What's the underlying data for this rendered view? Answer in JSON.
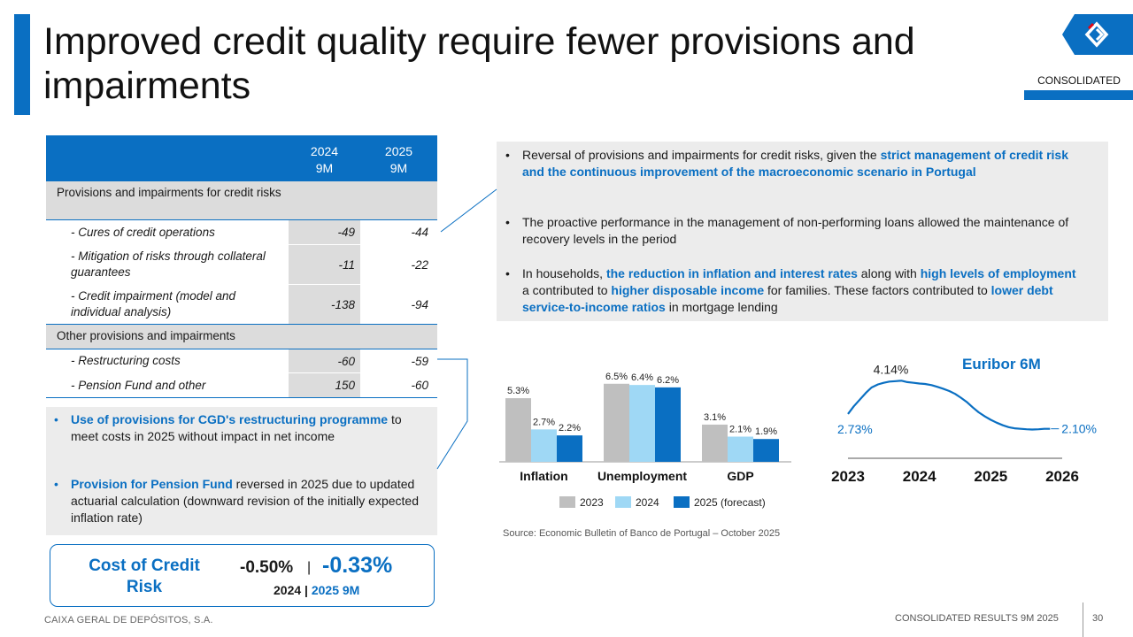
{
  "title": "Improved credit quality require fewer provisions and impairments",
  "badge": "CONSOLIDATED",
  "table": {
    "col1": [
      "2024",
      "9M"
    ],
    "col2": [
      "2025",
      "9M"
    ],
    "sections": [
      {
        "label": "Provisions and impairments for credit risks",
        "rows": [
          {
            "label": "- Cures of credit operations",
            "v2024": "-49",
            "v2025": "-44"
          },
          {
            "label": "- Mitigation of risks through collateral guarantees",
            "v2024": "-11",
            "v2025": "-22"
          },
          {
            "label": "- Credit impairment (model and individual analysis)",
            "v2024": "-138",
            "v2025": "-94"
          }
        ]
      },
      {
        "label": "Other provisions and impairments",
        "rows": [
          {
            "label": "- Restructuring costs",
            "v2024": "-60",
            "v2025": "-59"
          },
          {
            "label": "- Pension Fund and other",
            "v2024": "150",
            "v2025": "-60"
          }
        ]
      }
    ]
  },
  "left_bullets": [
    {
      "strong": "Use of provisions for CGD's restructuring programme",
      "rest": " to meet costs in 2025 without impact in net income"
    },
    {
      "strong": "Provision for Pension Fund",
      "rest": " reversed in 2025 due to updated actuarial calculation (downward revision of the initially expected inflation rate)"
    }
  ],
  "right_bullets": {
    "b1": {
      "pre": "Reversal of provisions and impairments for credit risks, given the ",
      "strong": "strict management of credit risk and the continuous improvement of the macroeconomic scenario in Portugal"
    },
    "b2": {
      "text": "The proactive performance in the management of non-performing loans allowed the maintenance of recovery levels in the period"
    },
    "b3": {
      "p1": "In households, ",
      "s1": "the reduction in inflation and interest rates",
      "p2": " along with ",
      "s2": "high levels of employment",
      "p3": " a contributed to ",
      "s3": "higher disposable income",
      "p4": " for families. These factors contributed to ",
      "s4": "lower debt service-to-income ratios",
      "p5": " in mortgage lending"
    }
  },
  "chart_data": [
    {
      "type": "bar",
      "categories": [
        "Inflation",
        "Unemployment",
        "GDP"
      ],
      "series": [
        {
          "name": "2023",
          "color": "#bfbfbf",
          "values": [
            5.3,
            6.5,
            3.1
          ],
          "labels": [
            "5.3%",
            "6.5%",
            "3.1%"
          ]
        },
        {
          "name": "2024",
          "color": "#9fd8f5",
          "values": [
            2.7,
            6.4,
            2.1
          ],
          "labels": [
            "2.7%",
            "6.4%",
            "2.1%"
          ]
        },
        {
          "name": "2025 (forecast)",
          "color": "#0a6fc2",
          "values": [
            2.2,
            6.2,
            1.9
          ],
          "labels": [
            "2.2%",
            "6.2%",
            "1.9%"
          ]
        }
      ],
      "ylim": [
        0,
        7
      ]
    },
    {
      "type": "line",
      "title": "Euribor 6M",
      "x_ticks": [
        "2023",
        "2024",
        "2025",
        "2026"
      ],
      "xlim": [
        2023.0,
        2026.0
      ],
      "ylim": [
        1.9,
        4.3
      ],
      "points": [
        [
          2023.0,
          2.73
        ],
        [
          2023.08,
          3.05
        ],
        [
          2023.17,
          3.35
        ],
        [
          2023.25,
          3.62
        ],
        [
          2023.33,
          3.85
        ],
        [
          2023.42,
          3.98
        ],
        [
          2023.5,
          4.05
        ],
        [
          2023.58,
          4.1
        ],
        [
          2023.67,
          4.12
        ],
        [
          2023.75,
          4.14
        ],
        [
          2023.83,
          4.08
        ],
        [
          2023.92,
          4.05
        ],
        [
          2024.0,
          4.02
        ],
        [
          2024.08,
          4.0
        ],
        [
          2024.17,
          3.95
        ],
        [
          2024.25,
          3.88
        ],
        [
          2024.33,
          3.8
        ],
        [
          2024.42,
          3.7
        ],
        [
          2024.5,
          3.58
        ],
        [
          2024.58,
          3.42
        ],
        [
          2024.67,
          3.22
        ],
        [
          2024.75,
          3.0
        ],
        [
          2024.83,
          2.8
        ],
        [
          2024.92,
          2.62
        ],
        [
          2025.0,
          2.48
        ],
        [
          2025.08,
          2.36
        ],
        [
          2025.17,
          2.25
        ],
        [
          2025.25,
          2.17
        ],
        [
          2025.33,
          2.12
        ],
        [
          2025.42,
          2.1
        ],
        [
          2025.5,
          2.08
        ],
        [
          2025.58,
          2.07
        ],
        [
          2025.67,
          2.08
        ],
        [
          2025.75,
          2.1
        ],
        [
          2025.83,
          2.1
        ]
      ],
      "annotations": {
        "start": "2.73%",
        "peak": "4.14%",
        "end": "2.10%"
      }
    }
  ],
  "source": "Source: Economic Bulletin of Banco de Portugal – October 2025",
  "ccr": {
    "label": "Cost of Credit Risk",
    "v2024": "-0.50%",
    "sep": "|",
    "v2025": "-0.33%",
    "sub_2024": "2024",
    "sub_sep": " | ",
    "sub_2025": "2025 9M"
  },
  "footer": {
    "company": "CAIXA GERAL DE DEPÓSITOS, S.A.",
    "report": "CONSOLIDATED RESULTS 9M 2025",
    "page": "30"
  }
}
